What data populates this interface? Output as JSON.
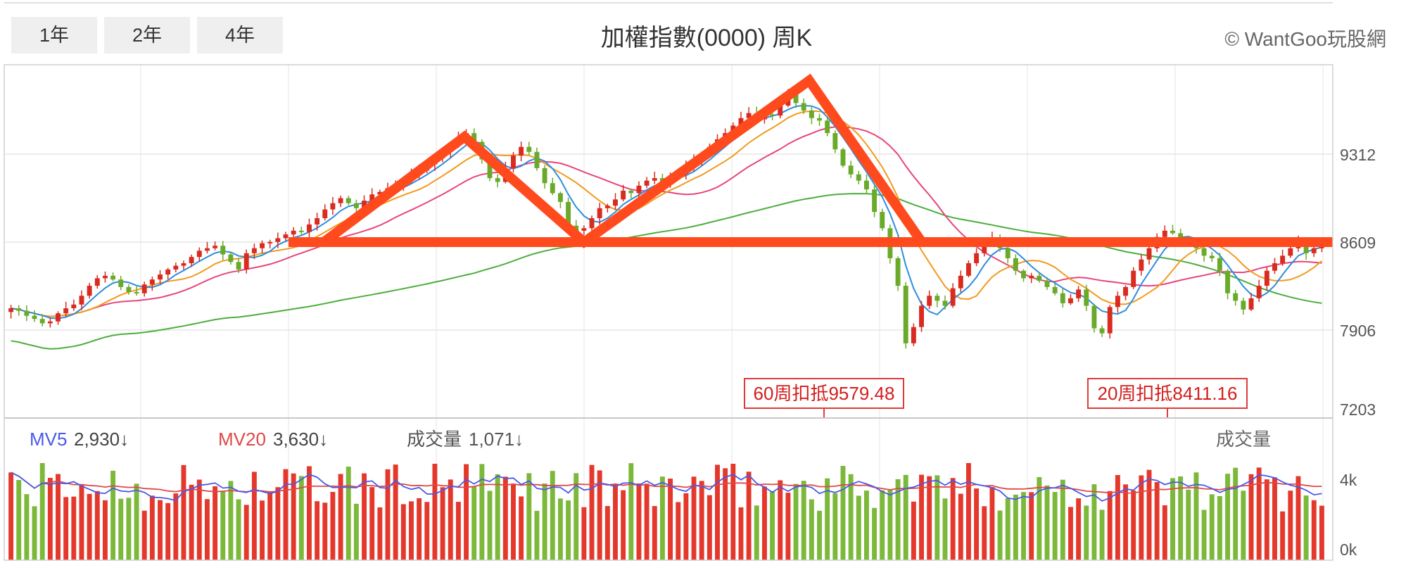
{
  "range_buttons": [
    "1年",
    "2年",
    "4年"
  ],
  "title": "加權指數(0000) 周K",
  "copyright": "© WantGoo玩股網",
  "chart_data": {
    "type": "candlestick",
    "price_axis": {
      "ticks": [
        9312,
        8609,
        7906,
        7203
      ],
      "range": [
        7203,
        10015
      ]
    },
    "volume_axis": {
      "ticks": [
        "4k",
        "0k"
      ],
      "range": [
        0,
        6000
      ]
    },
    "volume_legend": {
      "mv5_label": "MV5",
      "mv5_value": "2,930↓",
      "mv20_label": "MV20",
      "mv20_value": "3,630↓",
      "vol_label": "成交量",
      "vol_value": "1,071↓",
      "panel_label": "成交量"
    },
    "annotations": [
      {
        "text": "60周扣抵9579.48"
      },
      {
        "text": "20周扣抵8411.16"
      }
    ],
    "pattern_lines": {
      "neckline": 8609,
      "zigzag": [
        8609,
        9450,
        8609,
        9900,
        8609
      ]
    },
    "closes": [
      8080,
      8060,
      8020,
      7995,
      7960,
      7975,
      8040,
      8080,
      8110,
      8180,
      8260,
      8320,
      8340,
      8310,
      8250,
      8210,
      8200,
      8270,
      8310,
      8350,
      8390,
      8420,
      8440,
      8490,
      8540,
      8560,
      8580,
      8510,
      8450,
      8390,
      8520,
      8560,
      8600,
      8610,
      8640,
      8670,
      8700,
      8690,
      8750,
      8800,
      8870,
      8920,
      8960,
      8920,
      8880,
      8940,
      8990,
      9010,
      9040,
      9070,
      9110,
      9150,
      9180,
      9230,
      9280,
      9330,
      9390,
      9440,
      9480,
      9410,
      9270,
      9120,
      9090,
      9200,
      9300,
      9370,
      9330,
      9200,
      9080,
      9000,
      8930,
      8740,
      8700,
      8720,
      8800,
      8880,
      8900,
      8950,
      9020,
      9000,
      9060,
      9100,
      9120,
      9080,
      9130,
      9160,
      9220,
      9270,
      9310,
      9370,
      9430,
      9480,
      9540,
      9600,
      9640,
      9590,
      9630,
      9620,
      9700,
      9800,
      9720,
      9660,
      9600,
      9580,
      9480,
      9350,
      9220,
      9150,
      9100,
      9030,
      8850,
      8720,
      8480,
      8260,
      7800,
      7930,
      8100,
      8180,
      8140,
      8100,
      8240,
      8340,
      8440,
      8520,
      8600,
      8640,
      8560,
      8480,
      8380,
      8320,
      8340,
      8300,
      8250,
      8200,
      8120,
      8160,
      8230,
      8100,
      7920,
      7880,
      8090,
      8180,
      8250,
      8380,
      8470,
      8560,
      8650,
      8700,
      8680,
      8640,
      8600,
      8560,
      8500,
      8480,
      8380,
      8200,
      8140,
      8070,
      8160,
      8260,
      8380,
      8440,
      8500,
      8560,
      8620,
      8520,
      8560,
      8580
    ]
  }
}
